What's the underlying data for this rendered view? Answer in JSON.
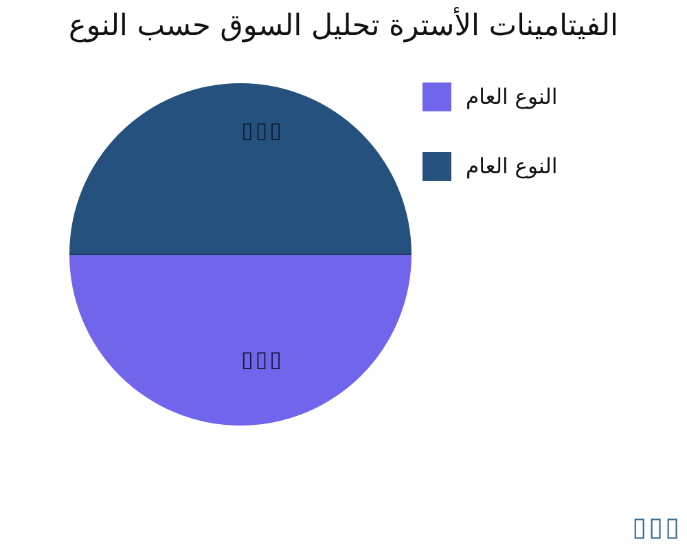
{
  "title": "الفيتامينات الأسترة تحليل السوق حسب النوع",
  "colors": {
    "background": "#ffffff",
    "title_text": "#111111",
    "slice_label": "#101b2c",
    "legend_text": "#111111",
    "watermark": "#34688e",
    "purple_slice": "#7165ec",
    "dark_blue_slice": "#24517e"
  },
  "chart_data": {
    "type": "pie",
    "title": "الفيتامينات الأسترة تحليل السوق حسب النوع",
    "slices": [
      {
        "label": "النوع العام",
        "value": 50,
        "color": "#7165ec",
        "position": "bottom-half",
        "data_label": "▯▯▯"
      },
      {
        "label": "النوع العام",
        "value": 50,
        "color": "#24517e",
        "position": "top-half",
        "data_label": "▯▯▯"
      }
    ],
    "legend_position": "upper-right",
    "data_label_style": "three missing-glyph (tofu) boxes rendered inside each slice"
  },
  "legend": {
    "items": [
      {
        "label": "النوع العام",
        "color": "#7165ec"
      },
      {
        "label": "النوع العام",
        "color": "#24517e"
      }
    ]
  },
  "pie_labels": {
    "top": "▯▯▯",
    "bottom": "▯▯▯"
  },
  "watermark": {
    "text": "▯▯▯"
  }
}
